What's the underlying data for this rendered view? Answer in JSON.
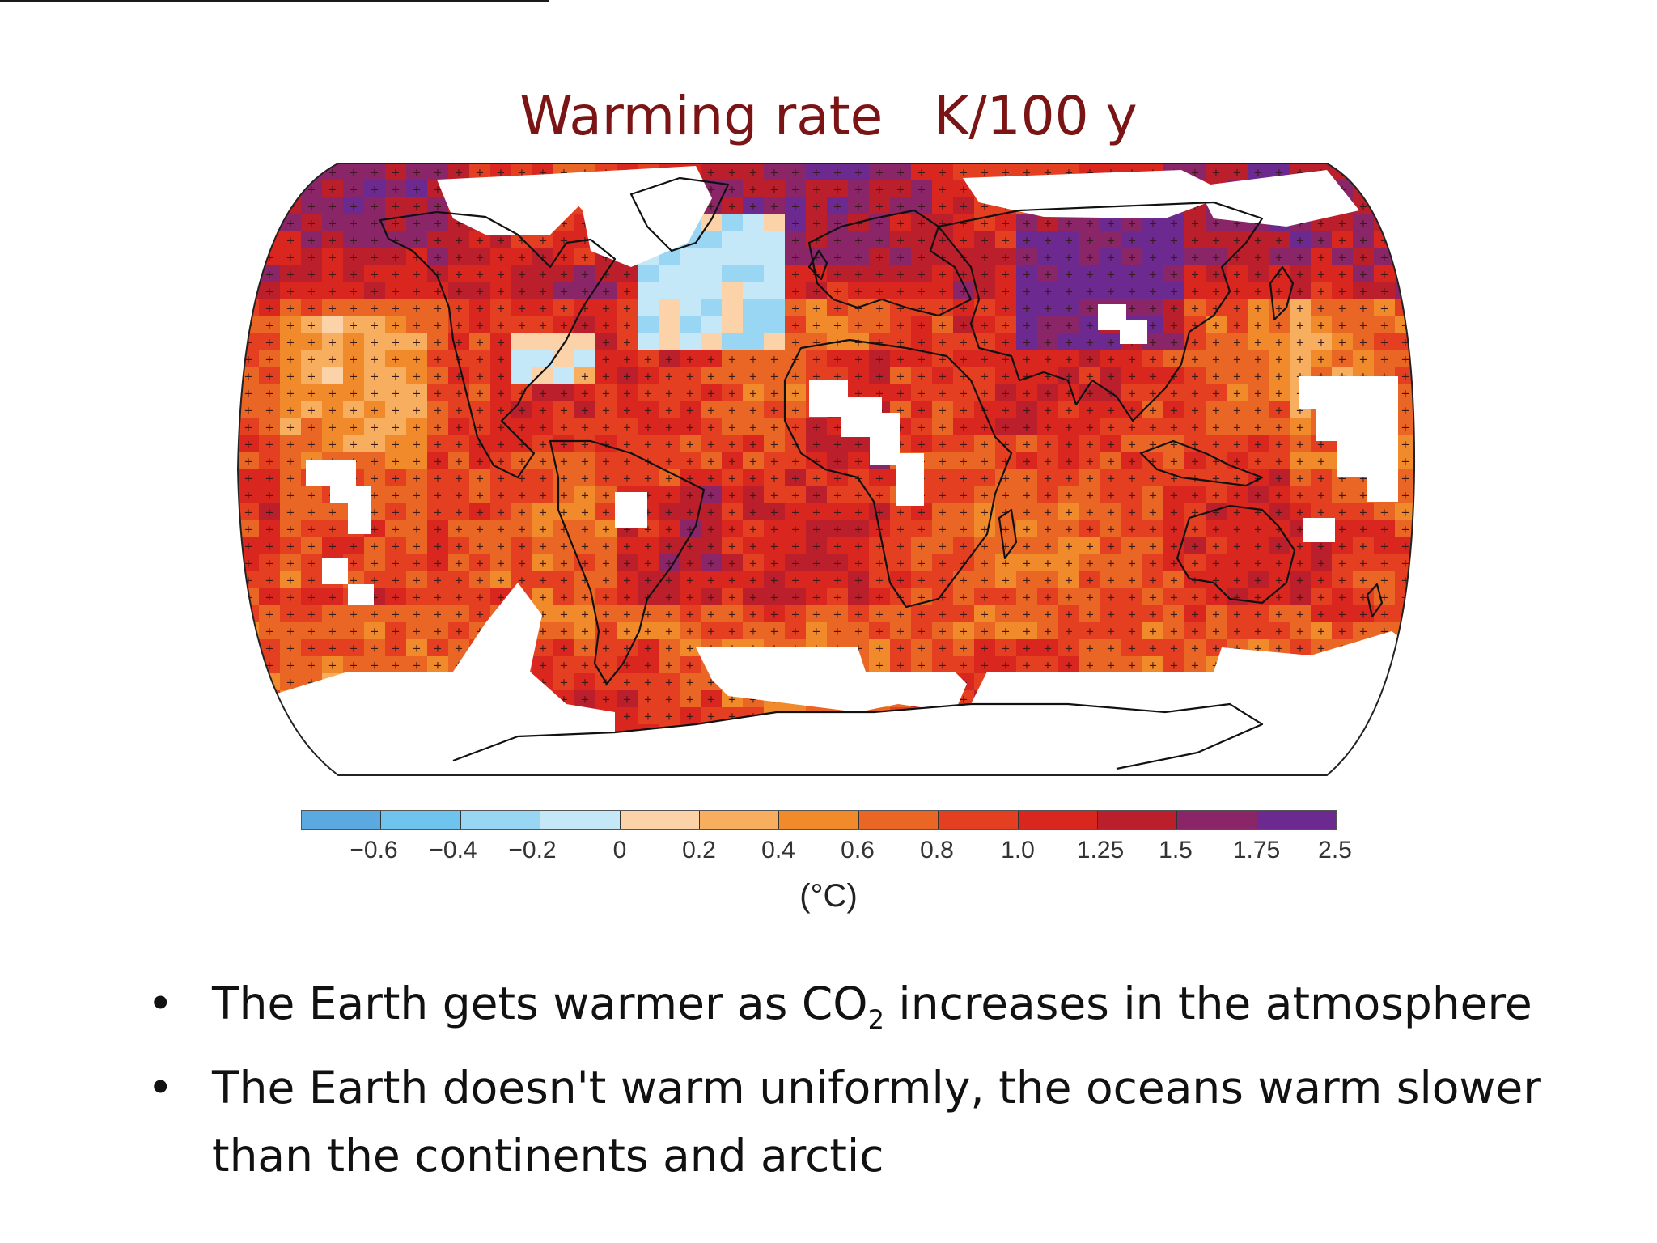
{
  "slide": {
    "title": "Warming rate   K/100 y",
    "bullets": [
      {
        "bullet_char": "•",
        "text_before": "The Earth gets warmer as CO",
        "subscript": "2",
        "text_after": " increases in the atmosphere"
      },
      {
        "bullet_char": "•",
        "text": "The Earth doesn't warm uniformly, the oceans warm slower than the continents and arctic"
      }
    ]
  },
  "map": {
    "projection": "Robinson",
    "colorbar": {
      "tick_labels": [
        "−0.6",
        "−0.4",
        "−0.2",
        "0",
        "0.2",
        "0.4",
        "0.6",
        "0.8",
        "1.0",
        "1.25",
        "1.5",
        "1.75",
        "2.5"
      ],
      "unit_label": "(°C)",
      "colors": [
        "#5aa9e0",
        "#6ec3ef",
        "#99d6f4",
        "#c4e8f7",
        "#fcd3a8",
        "#f7ae5e",
        "#f08a2a",
        "#ea6624",
        "#e43f21",
        "#d9261f",
        "#bb1f2b",
        "#8a2568",
        "#6c2a91"
      ]
    },
    "features": {
      "significance_marker": "+",
      "no_data_color": "#ffffff",
      "coastline_color": "#111111"
    }
  }
}
